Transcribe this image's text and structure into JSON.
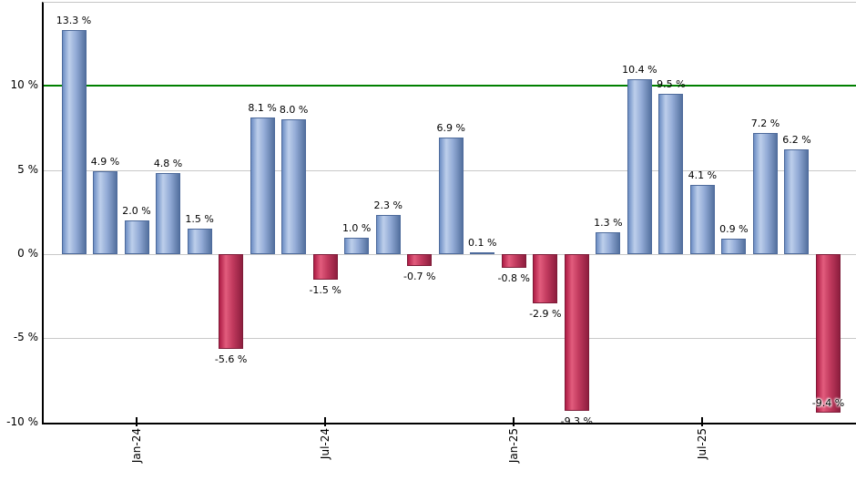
{
  "chart_data": {
    "type": "bar",
    "title": "",
    "values": [
      13.3,
      4.9,
      2.0,
      4.8,
      1.5,
      -5.6,
      8.1,
      8.0,
      -1.5,
      1.0,
      2.3,
      -0.7,
      6.9,
      0.1,
      -0.8,
      -2.9,
      -9.3,
      1.3,
      10.4,
      9.5,
      4.1,
      0.9,
      7.2,
      6.2,
      -9.4
    ],
    "bar_labels": [
      "13.3 %",
      "4.9 %",
      "2.0 %",
      "4.8 %",
      "1.5 %",
      "-5.6 %",
      "8.1 %",
      "8.0 %",
      "-1.5 %",
      "1.0 %",
      "2.3 %",
      "-0.7 %",
      "6.9 %",
      "0.1 %",
      "-0.8 %",
      "-2.9 %",
      "-9.3 %",
      "1.3 %",
      "10.4 %",
      "9.5 %",
      "4.1 %",
      "0.9 %",
      "7.2 %",
      "6.2 %",
      "-9.4 %"
    ],
    "x_axis": {
      "ticks": [
        {
          "label": "Jan-24",
          "bar_index": 2
        },
        {
          "label": "Jul-24",
          "bar_index": 8
        },
        {
          "label": "Jan-25",
          "bar_index": 14
        },
        {
          "label": "Jul-25",
          "bar_index": 20
        }
      ]
    },
    "y_axis": {
      "ticks": [
        {
          "label": "10 %",
          "value": 10
        },
        {
          "label": "5 %",
          "value": 5
        },
        {
          "label": "0 %",
          "value": 0
        },
        {
          "label": "-5 %",
          "value": -5
        },
        {
          "label": "-10 %",
          "value": -10
        }
      ],
      "min": -10,
      "max": 14.9,
      "grid": true
    },
    "reference_line": {
      "value": 10,
      "color": "#008000"
    },
    "legend": "none",
    "colors": {
      "positive_fill": [
        "#6d8ec4",
        "#bdcfeb",
        "#54719f"
      ],
      "positive_border": "#4d6a9b",
      "negative_fill": [
        "#ae1c45",
        "#e25c7d",
        "#8e1e3e"
      ],
      "negative_border": "#7e1b38",
      "grid": "#c9c9c9",
      "reference": "#008000",
      "axis": "#000000",
      "text": "#000000"
    }
  }
}
